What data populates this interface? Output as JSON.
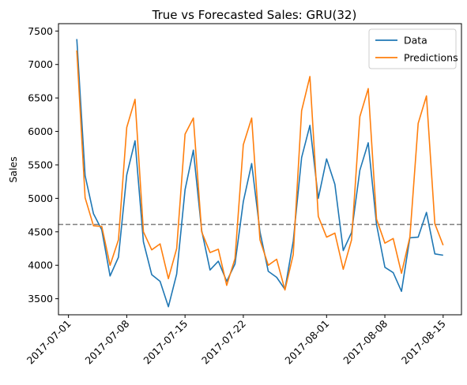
{
  "chart_data": {
    "type": "line",
    "title": "True vs Forecasted Sales: GRU(32)",
    "xlabel": "",
    "ylabel": "Sales",
    "x_type": "date",
    "x": [
      "2017-07-02",
      "2017-07-03",
      "2017-07-04",
      "2017-07-05",
      "2017-07-06",
      "2017-07-07",
      "2017-07-08",
      "2017-07-09",
      "2017-07-10",
      "2017-07-11",
      "2017-07-12",
      "2017-07-13",
      "2017-07-14",
      "2017-07-15",
      "2017-07-16",
      "2017-07-17",
      "2017-07-18",
      "2017-07-19",
      "2017-07-20",
      "2017-07-21",
      "2017-07-22",
      "2017-07-23",
      "2017-07-24",
      "2017-07-25",
      "2017-07-26",
      "2017-07-27",
      "2017-07-28",
      "2017-07-29",
      "2017-07-30",
      "2017-07-31",
      "2017-08-01",
      "2017-08-02",
      "2017-08-03",
      "2017-08-04",
      "2017-08-05",
      "2017-08-06",
      "2017-08-07",
      "2017-08-08",
      "2017-08-09",
      "2017-08-10",
      "2017-08-11",
      "2017-08-12",
      "2017-08-13",
      "2017-08-14",
      "2017-08-15"
    ],
    "series": [
      {
        "name": "Data",
        "color": "#1f77b4",
        "values": [
          7380,
          5340,
          4770,
          4530,
          3840,
          4120,
          5350,
          5860,
          4350,
          3860,
          3760,
          3380,
          3870,
          5130,
          5720,
          4520,
          3930,
          4060,
          3760,
          4020,
          4950,
          5520,
          4500,
          3910,
          3820,
          3640,
          4360,
          5610,
          6090,
          5000,
          5590,
          5210,
          4220,
          4490,
          5420,
          5830,
          4610,
          3970,
          3890,
          3610,
          4410,
          4420,
          4790,
          4170,
          4150
        ]
      },
      {
        "name": "Predictions",
        "color": "#ff7f0e",
        "values": [
          7210,
          5010,
          4590,
          4580,
          4000,
          4380,
          6060,
          6480,
          4500,
          4230,
          4320,
          3800,
          4250,
          5960,
          6200,
          4500,
          4190,
          4240,
          3700,
          4100,
          5800,
          6200,
          4380,
          4000,
          4090,
          3630,
          4160,
          6310,
          6820,
          4730,
          4420,
          4480,
          3940,
          4380,
          6220,
          6640,
          4690,
          4330,
          4400,
          3880,
          4420,
          6120,
          6530,
          4620,
          4300
        ]
      }
    ],
    "reference_line": {
      "y": 4610,
      "style": "dashed",
      "color": "#808080"
    },
    "ylim": [
      3260,
      7610
    ],
    "yticks": [
      3500,
      4000,
      4500,
      5000,
      5500,
      6000,
      6500,
      7000,
      7500
    ],
    "xlim": [
      "2017-06-29.8",
      "2017-08-17.2"
    ],
    "xticks": [
      "2017-07-01",
      "2017-07-08",
      "2017-07-15",
      "2017-07-22",
      "2017-08-01",
      "2017-08-08",
      "2017-08-15"
    ],
    "xtick_rotation": 45,
    "grid": false,
    "legend_position": "upper right"
  }
}
